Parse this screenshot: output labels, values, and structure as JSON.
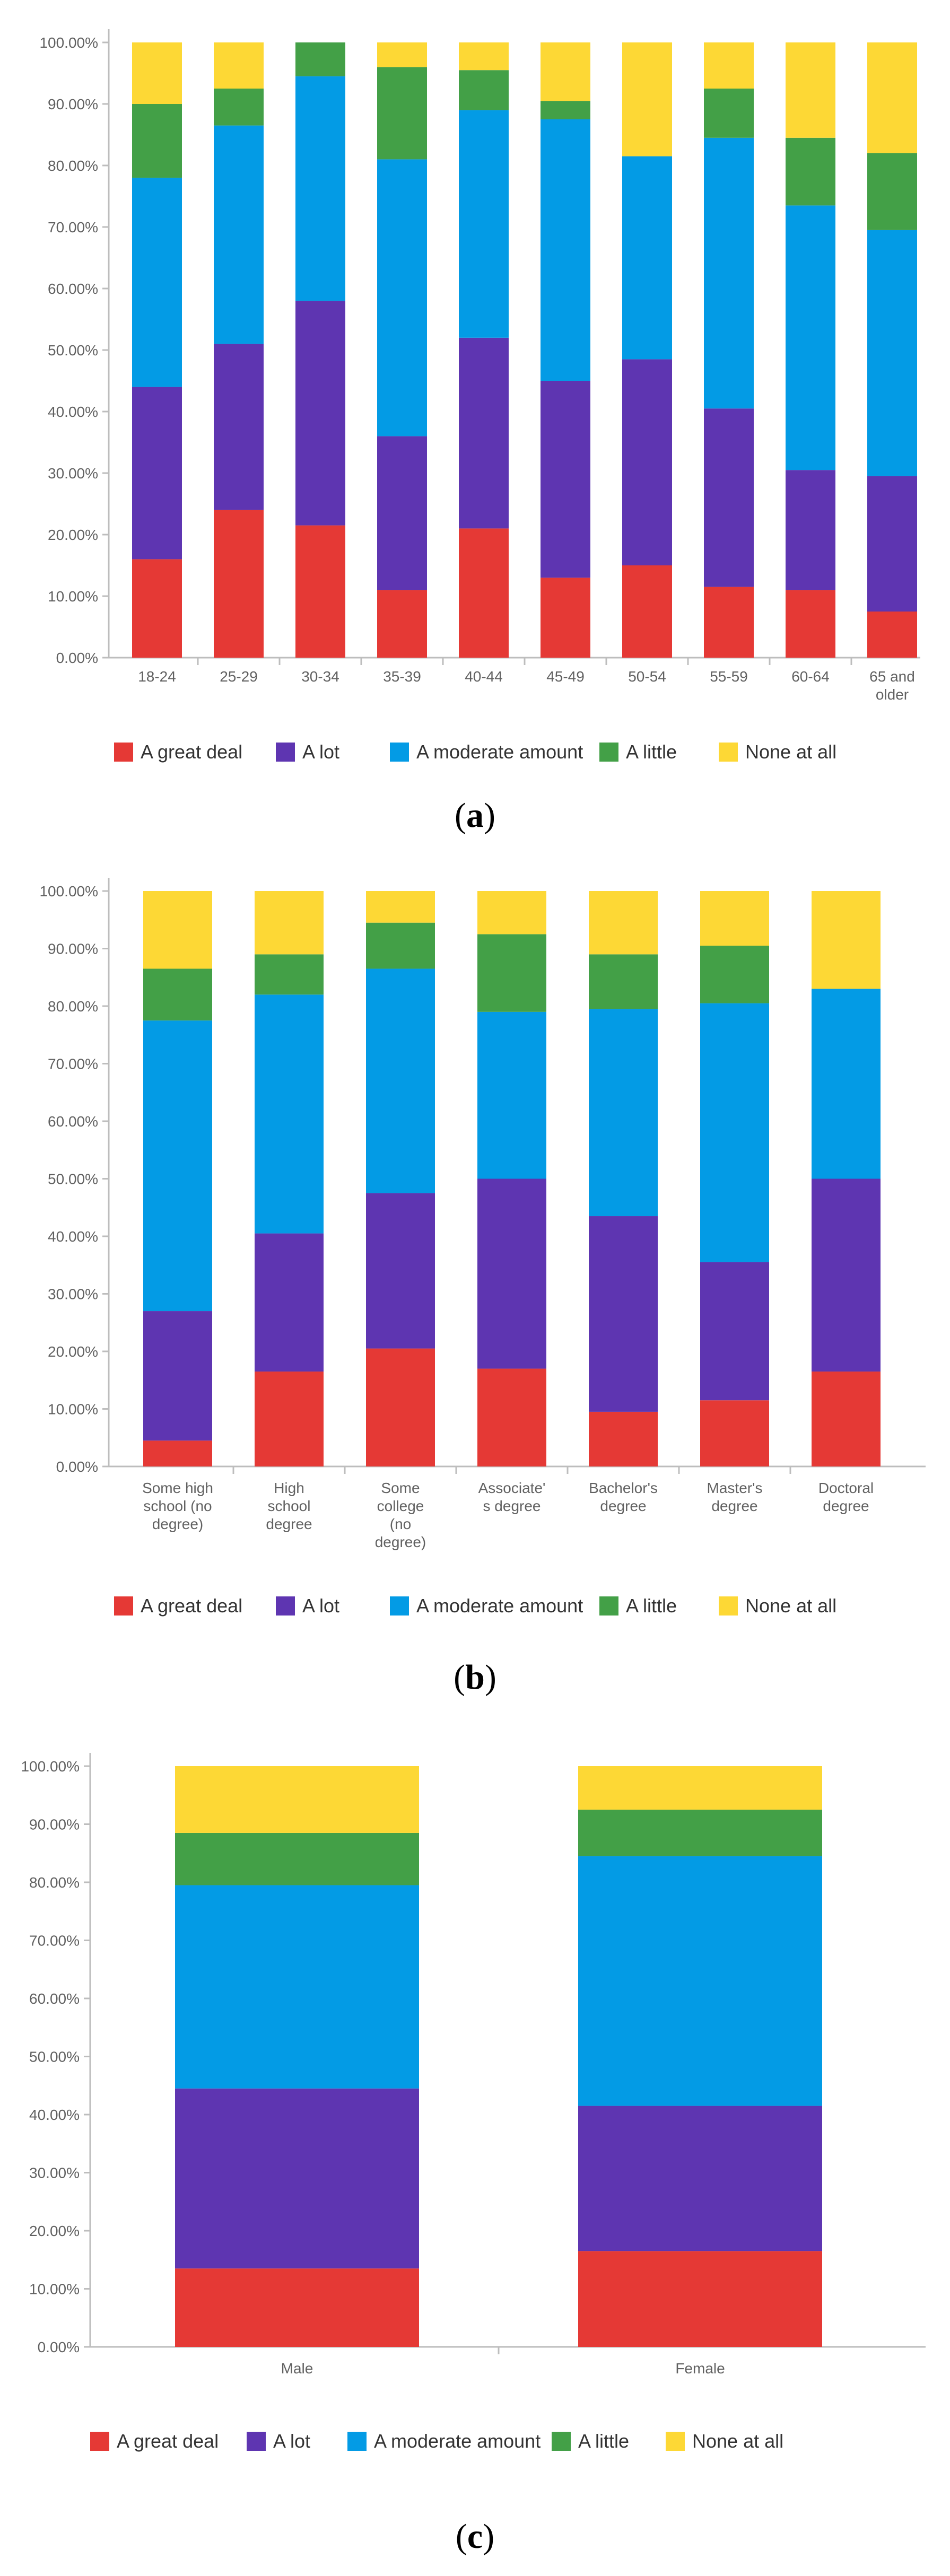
{
  "legend": {
    "entries": [
      "A great deal",
      "A lot",
      "A moderate amount",
      "A little",
      "None at all"
    ],
    "colors": [
      "#e53935",
      "#5e35b1",
      "#039be5",
      "#43a047",
      "#fdd835"
    ]
  },
  "panels": [
    {
      "open": "(",
      "letter": "a",
      "close": ")"
    },
    {
      "open": "(",
      "letter": "b",
      "close": ")"
    },
    {
      "open": "(",
      "letter": "c",
      "close": ")"
    }
  ],
  "chart_data": [
    {
      "type": "bar",
      "stacked": true,
      "title": "",
      "xlabel": "",
      "ylabel": "",
      "ylim": [
        0,
        100
      ],
      "yticks": [
        "0.00%",
        "10.00%",
        "20.00%",
        "30.00%",
        "40.00%",
        "50.00%",
        "60.00%",
        "70.00%",
        "80.00%",
        "90.00%",
        "100.00%"
      ],
      "categories": [
        [
          "18-24"
        ],
        [
          "25-29"
        ],
        [
          "30-34"
        ],
        [
          "35-39"
        ],
        [
          "40-44"
        ],
        [
          "45-49"
        ],
        [
          "50-54"
        ],
        [
          "55-59"
        ],
        [
          "60-64"
        ],
        [
          "65 and",
          "older"
        ]
      ],
      "series": [
        {
          "name": "A great deal",
          "values": [
            16,
            24,
            21.5,
            11,
            21,
            13,
            15,
            11.5,
            11,
            7.5
          ]
        },
        {
          "name": "A lot",
          "values": [
            28,
            27,
            36.5,
            25,
            31,
            32,
            33.5,
            29,
            19.5,
            22
          ]
        },
        {
          "name": "A moderate amount",
          "values": [
            34,
            35.5,
            36.5,
            45,
            37,
            42.5,
            33,
            44,
            43,
            40
          ]
        },
        {
          "name": "A little",
          "values": [
            12,
            6,
            5.5,
            15,
            6.5,
            3,
            0,
            8,
            11,
            12.5
          ]
        },
        {
          "name": "None at all",
          "values": [
            10,
            7.5,
            0,
            4,
            4.5,
            9.5,
            18.5,
            7.5,
            15.5,
            18
          ]
        }
      ]
    },
    {
      "type": "bar",
      "stacked": true,
      "title": "",
      "xlabel": "",
      "ylabel": "",
      "ylim": [
        0,
        100
      ],
      "yticks": [
        "0.00%",
        "10.00%",
        "20.00%",
        "30.00%",
        "40.00%",
        "50.00%",
        "60.00%",
        "70.00%",
        "80.00%",
        "90.00%",
        "100.00%"
      ],
      "categories": [
        [
          "Some high",
          "school (no",
          "degree)"
        ],
        [
          "High",
          "school",
          "degree"
        ],
        [
          "Some",
          "college",
          "(no",
          "degree)"
        ],
        [
          "Associate'",
          "s degree"
        ],
        [
          "Bachelor's",
          "degree"
        ],
        [
          "Master's",
          "degree"
        ],
        [
          "Doctoral",
          "degree"
        ]
      ],
      "series": [
        {
          "name": "A great deal",
          "values": [
            4.5,
            16.5,
            20.5,
            17,
            9.5,
            11.5,
            16.5
          ]
        },
        {
          "name": "A lot",
          "values": [
            22.5,
            24,
            27,
            33,
            34,
            24,
            33.5
          ]
        },
        {
          "name": "A moderate amount",
          "values": [
            50.5,
            41.5,
            39,
            29,
            36,
            45,
            33
          ]
        },
        {
          "name": "A little",
          "values": [
            9,
            7,
            8,
            13.5,
            9.5,
            10,
            0
          ]
        },
        {
          "name": "None at all",
          "values": [
            13.5,
            11,
            5.5,
            7.5,
            11,
            9.5,
            17
          ]
        }
      ]
    },
    {
      "type": "bar",
      "stacked": true,
      "title": "",
      "xlabel": "",
      "ylabel": "",
      "ylim": [
        0,
        100
      ],
      "yticks": [
        "0.00%",
        "10.00%",
        "20.00%",
        "30.00%",
        "40.00%",
        "50.00%",
        "60.00%",
        "70.00%",
        "80.00%",
        "90.00%",
        "100.00%"
      ],
      "categories": [
        [
          "Male"
        ],
        [
          "Female"
        ]
      ],
      "series": [
        {
          "name": "A great deal",
          "values": [
            13.5,
            16.5
          ]
        },
        {
          "name": "A lot",
          "values": [
            31,
            25
          ]
        },
        {
          "name": "A moderate amount",
          "values": [
            35,
            43
          ]
        },
        {
          "name": "A little",
          "values": [
            9,
            8
          ]
        },
        {
          "name": "None at all",
          "values": [
            11.5,
            7.5
          ]
        }
      ]
    }
  ]
}
